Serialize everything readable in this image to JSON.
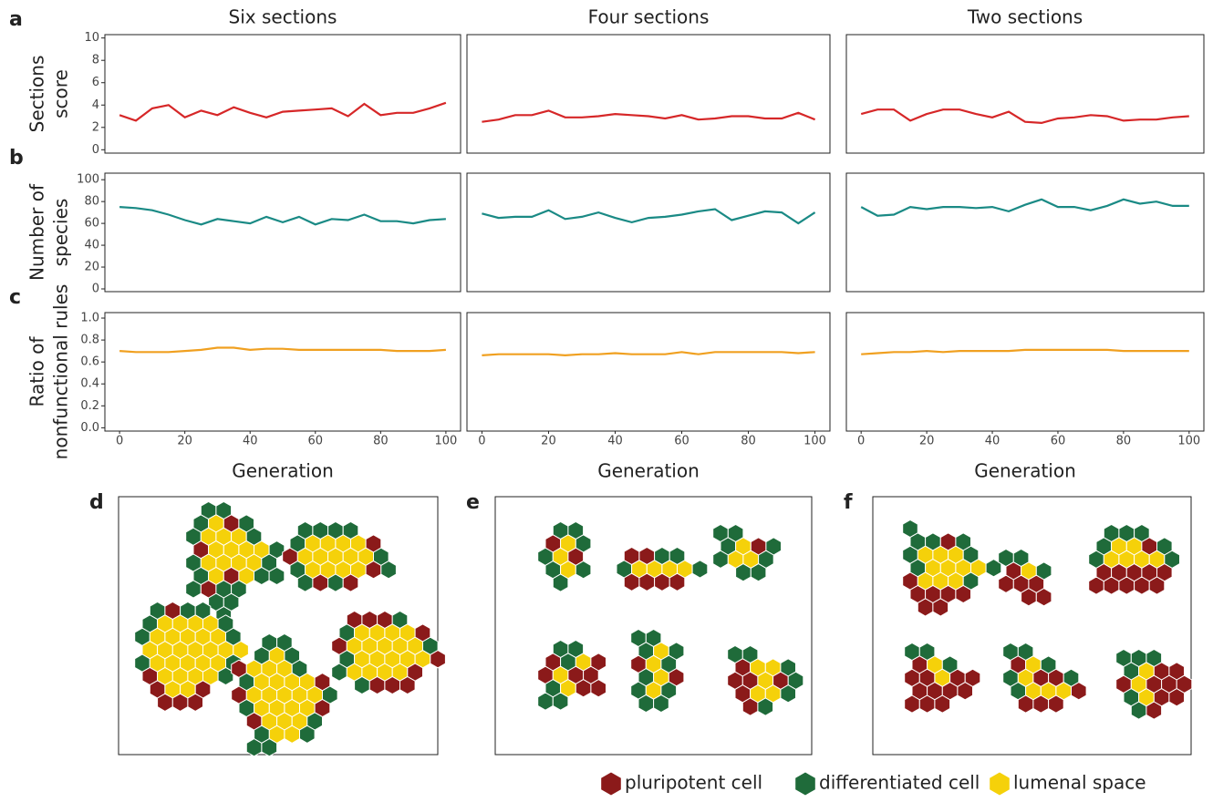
{
  "chart_data": [
    {
      "type": "line",
      "panel": "a",
      "title": "Six sections",
      "ylabel": [
        "Sections",
        "score"
      ],
      "x": [
        0,
        5,
        10,
        15,
        20,
        25,
        30,
        35,
        40,
        45,
        50,
        55,
        60,
        65,
        70,
        75,
        80,
        85,
        90,
        95,
        100
      ],
      "values": [
        3.1,
        2.6,
        3.7,
        4.0,
        2.9,
        3.5,
        3.1,
        3.8,
        3.3,
        2.9,
        3.4,
        3.5,
        3.6,
        3.7,
        3.0,
        4.1,
        3.1,
        3.3,
        3.3,
        3.7,
        4.2
      ],
      "color": "#d62728",
      "xlim": [
        -4.5,
        104.5
      ],
      "ylim": [
        -0.3,
        10.3
      ],
      "yticks": [
        0,
        2,
        4,
        6,
        8,
        10
      ]
    },
    {
      "type": "line",
      "title": "Four sections",
      "x": [
        0,
        5,
        10,
        15,
        20,
        25,
        30,
        35,
        40,
        45,
        50,
        55,
        60,
        65,
        70,
        75,
        80,
        85,
        90,
        95,
        100
      ],
      "values": [
        2.5,
        2.7,
        3.1,
        3.1,
        3.5,
        2.9,
        2.9,
        3.0,
        3.2,
        3.1,
        3.0,
        2.8,
        3.1,
        2.7,
        2.8,
        3.0,
        3.0,
        2.8,
        2.8,
        3.3,
        2.7
      ],
      "color": "#d62728",
      "xlim": [
        -4.5,
        104.5
      ],
      "ylim": [
        -0.3,
        10.3
      ]
    },
    {
      "type": "line",
      "title": "Two sections",
      "x": [
        0,
        5,
        10,
        15,
        20,
        25,
        30,
        35,
        40,
        45,
        50,
        55,
        60,
        65,
        70,
        75,
        80,
        85,
        90,
        95,
        100
      ],
      "values": [
        3.2,
        3.6,
        3.6,
        2.6,
        3.2,
        3.6,
        3.6,
        3.2,
        2.9,
        3.4,
        2.5,
        2.4,
        2.8,
        2.9,
        3.1,
        3.0,
        2.6,
        2.7,
        2.7,
        2.9,
        3.0
      ],
      "color": "#d62728",
      "xlim": [
        -4.5,
        104.5
      ],
      "ylim": [
        -0.3,
        10.3
      ]
    },
    {
      "type": "line",
      "panel": "b",
      "ylabel": [
        "Number of",
        "species"
      ],
      "x": [
        0,
        5,
        10,
        15,
        20,
        25,
        30,
        35,
        40,
        45,
        50,
        55,
        60,
        65,
        70,
        75,
        80,
        85,
        90,
        95,
        100
      ],
      "values": [
        75,
        74,
        72,
        68,
        63,
        59,
        64,
        62,
        60,
        66,
        61,
        66,
        59,
        64,
        63,
        68,
        62,
        62,
        60,
        63,
        64
      ],
      "color": "#1a8a85",
      "xlim": [
        -4.5,
        104.5
      ],
      "ylim": [
        -2.5,
        106
      ],
      "yticks": [
        0,
        20,
        40,
        60,
        80,
        100
      ]
    },
    {
      "type": "line",
      "x": [
        0,
        5,
        10,
        15,
        20,
        25,
        30,
        35,
        40,
        45,
        50,
        55,
        60,
        65,
        70,
        75,
        80,
        85,
        90,
        95,
        100
      ],
      "values": [
        69,
        65,
        66,
        66,
        72,
        64,
        66,
        70,
        65,
        61,
        65,
        66,
        68,
        71,
        73,
        63,
        67,
        71,
        70,
        60,
        70
      ],
      "color": "#1a8a85",
      "xlim": [
        -4.5,
        104.5
      ],
      "ylim": [
        -2.5,
        106
      ]
    },
    {
      "type": "line",
      "x": [
        0,
        5,
        10,
        15,
        20,
        25,
        30,
        35,
        40,
        45,
        50,
        55,
        60,
        65,
        70,
        75,
        80,
        85,
        90,
        95,
        100
      ],
      "values": [
        75,
        67,
        68,
        75,
        73,
        75,
        75,
        74,
        75,
        71,
        77,
        82,
        75,
        75,
        72,
        76,
        82,
        78,
        80,
        76,
        76
      ],
      "color": "#1a8a85",
      "xlim": [
        -4.5,
        104.5
      ],
      "ylim": [
        -2.5,
        106
      ]
    },
    {
      "type": "line",
      "panel": "c",
      "ylabel": [
        "Ratio of",
        "nonfunctional rules"
      ],
      "xlabel": "Generation",
      "x": [
        0,
        5,
        10,
        15,
        20,
        25,
        30,
        35,
        40,
        45,
        50,
        55,
        60,
        65,
        70,
        75,
        80,
        85,
        90,
        95,
        100
      ],
      "values": [
        0.7,
        0.69,
        0.69,
        0.69,
        0.7,
        0.71,
        0.73,
        0.73,
        0.71,
        0.72,
        0.72,
        0.71,
        0.71,
        0.71,
        0.71,
        0.71,
        0.71,
        0.7,
        0.7,
        0.7,
        0.71
      ],
      "color": "#f0a020",
      "xlim": [
        -4.5,
        104.5
      ],
      "ylim": [
        -0.03,
        1.05
      ],
      "yticks": [
        {
          "value": 0,
          "label": "0.0"
        },
        0.2,
        0.4,
        0.6,
        0.8,
        {
          "value": 1,
          "label": "1.0"
        }
      ],
      "xticks": [
        0,
        20,
        40,
        60,
        80,
        100
      ]
    },
    {
      "type": "line",
      "xlabel": "Generation",
      "x": [
        0,
        5,
        10,
        15,
        20,
        25,
        30,
        35,
        40,
        45,
        50,
        55,
        60,
        65,
        70,
        75,
        80,
        85,
        90,
        95,
        100
      ],
      "values": [
        0.66,
        0.67,
        0.67,
        0.67,
        0.67,
        0.66,
        0.67,
        0.67,
        0.68,
        0.67,
        0.67,
        0.67,
        0.69,
        0.67,
        0.69,
        0.69,
        0.69,
        0.69,
        0.69,
        0.68,
        0.69
      ],
      "color": "#f0a020",
      "xlim": [
        -4.5,
        104.5
      ],
      "ylim": [
        -0.03,
        1.05
      ],
      "xticks": [
        0,
        20,
        40,
        60,
        80,
        100
      ]
    },
    {
      "type": "line",
      "xlabel": "Generation",
      "x": [
        0,
        5,
        10,
        15,
        20,
        25,
        30,
        35,
        40,
        45,
        50,
        55,
        60,
        65,
        70,
        75,
        80,
        85,
        90,
        95,
        100
      ],
      "values": [
        0.67,
        0.68,
        0.69,
        0.69,
        0.7,
        0.69,
        0.7,
        0.7,
        0.7,
        0.7,
        0.71,
        0.71,
        0.71,
        0.71,
        0.71,
        0.71,
        0.7,
        0.7,
        0.7,
        0.7,
        0.7
      ],
      "color": "#f0a020",
      "xlim": [
        -4.5,
        104.5
      ],
      "ylim": [
        -0.03,
        1.05
      ],
      "xticks": [
        0,
        20,
        40,
        60,
        80,
        100
      ]
    }
  ],
  "panels": [
    "d",
    "e",
    "f"
  ],
  "legend": [
    "pluripotent cell",
    "differentiated cell",
    "lumenal space"
  ]
}
